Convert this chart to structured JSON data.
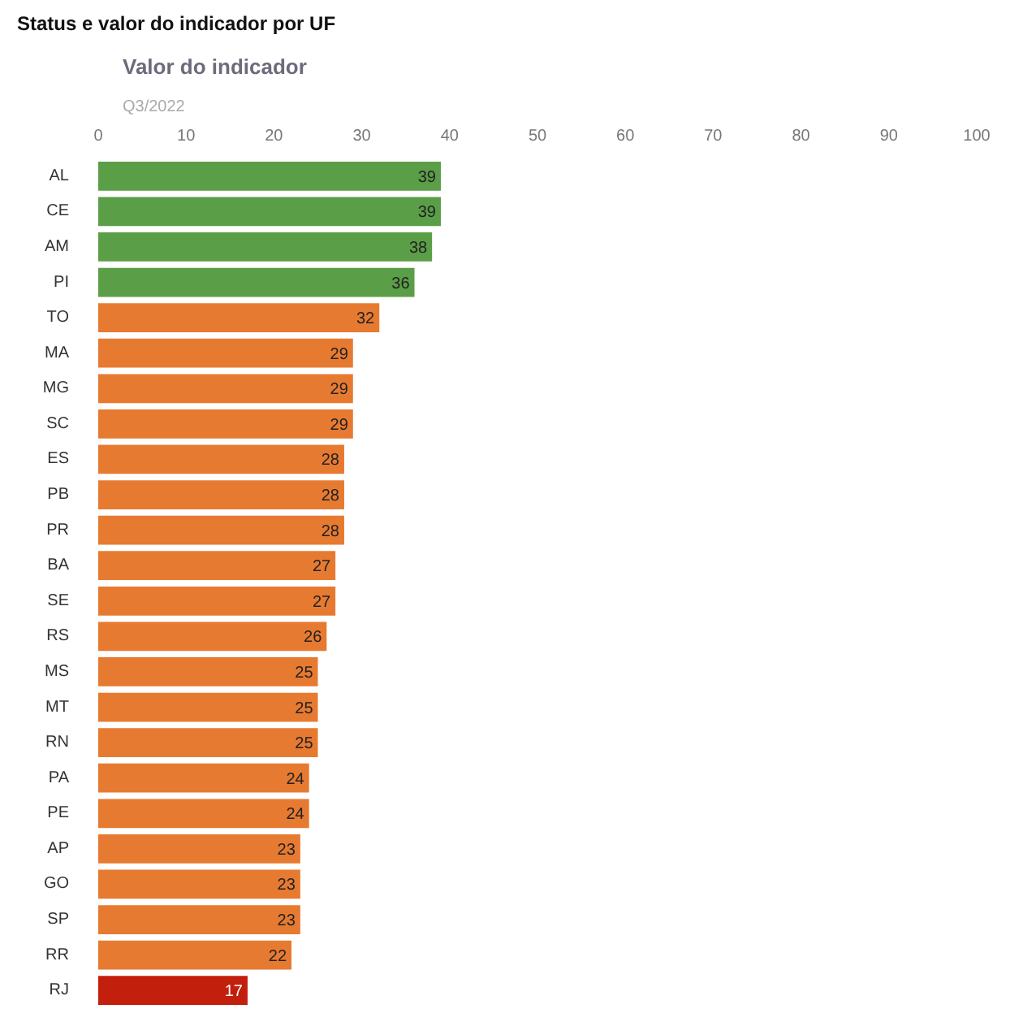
{
  "chart_data": {
    "type": "bar",
    "orientation": "horizontal",
    "title": "Status e valor do indicador por UF",
    "xlabel": "Valor do indicador",
    "subtitle": "Q3/2022",
    "categories": [
      "AL",
      "CE",
      "AM",
      "PI",
      "TO",
      "MA",
      "MG",
      "SC",
      "ES",
      "PB",
      "PR",
      "BA",
      "SE",
      "RS",
      "MS",
      "MT",
      "RN",
      "PA",
      "PE",
      "AP",
      "GO",
      "SP",
      "RR",
      "RJ"
    ],
    "values": [
      39,
      39,
      38,
      36,
      32,
      29,
      29,
      29,
      28,
      28,
      28,
      27,
      27,
      26,
      25,
      25,
      25,
      24,
      24,
      23,
      23,
      23,
      22,
      17
    ],
    "colors": [
      "#5b9e48",
      "#5b9e48",
      "#5b9e48",
      "#5b9e48",
      "#e77a31",
      "#e77a31",
      "#e77a31",
      "#e77a31",
      "#e77a31",
      "#e77a31",
      "#e77a31",
      "#e77a31",
      "#e77a31",
      "#e77a31",
      "#e77a31",
      "#e77a31",
      "#e77a31",
      "#e77a31",
      "#e77a31",
      "#e77a31",
      "#e77a31",
      "#e77a31",
      "#e77a31",
      "#c2200c"
    ],
    "xlim": [
      0,
      100
    ],
    "xticks": [
      0,
      10,
      20,
      30,
      40,
      50,
      60,
      70,
      80,
      90,
      100
    ],
    "data_labels": true,
    "grid": false
  }
}
